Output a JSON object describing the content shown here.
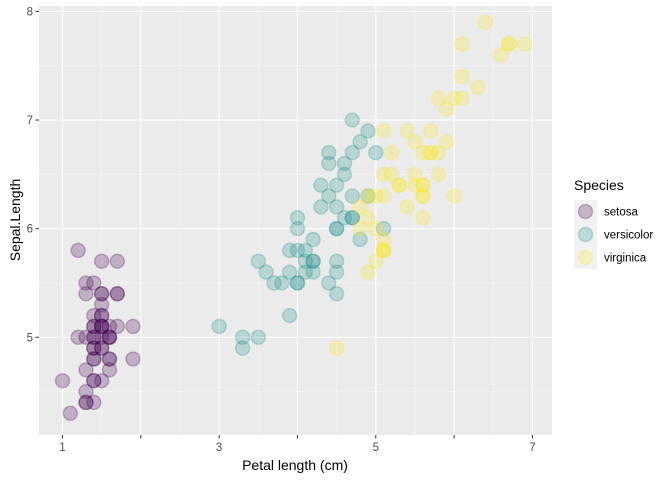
{
  "chart_data": {
    "type": "scatter",
    "xlabel": "Petal length (cm)",
    "ylabel": "Sepal.Length",
    "xlim": [
      0.7,
      7.25
    ],
    "ylim": [
      4.1,
      8.05
    ],
    "x_ticks": [
      1,
      3,
      5,
      7
    ],
    "x_ticks_unlabeled": [
      2,
      4,
      6
    ],
    "y_ticks": [
      5,
      6,
      7,
      8
    ],
    "grid": true,
    "legend": {
      "title": "Species",
      "position": "right"
    },
    "point_alpha": 0.25,
    "series": [
      {
        "name": "setosa",
        "color": "#440154",
        "points": [
          [
            1.4,
            5.1
          ],
          [
            1.4,
            4.9
          ],
          [
            1.3,
            4.7
          ],
          [
            1.5,
            4.6
          ],
          [
            1.4,
            5.0
          ],
          [
            1.7,
            5.4
          ],
          [
            1.4,
            4.6
          ],
          [
            1.5,
            5.0
          ],
          [
            1.4,
            4.4
          ],
          [
            1.5,
            4.9
          ],
          [
            1.5,
            5.4
          ],
          [
            1.6,
            4.8
          ],
          [
            1.4,
            4.8
          ],
          [
            1.1,
            4.3
          ],
          [
            1.2,
            5.8
          ],
          [
            1.5,
            5.7
          ],
          [
            1.3,
            5.4
          ],
          [
            1.4,
            5.1
          ],
          [
            1.7,
            5.7
          ],
          [
            1.5,
            5.1
          ],
          [
            1.7,
            5.4
          ],
          [
            1.5,
            5.1
          ],
          [
            1.0,
            4.6
          ],
          [
            1.7,
            5.1
          ],
          [
            1.9,
            4.8
          ],
          [
            1.6,
            5.0
          ],
          [
            1.6,
            5.0
          ],
          [
            1.5,
            5.2
          ],
          [
            1.4,
            5.2
          ],
          [
            1.6,
            4.7
          ],
          [
            1.6,
            4.8
          ],
          [
            1.5,
            5.4
          ],
          [
            1.5,
            5.2
          ],
          [
            1.4,
            5.5
          ],
          [
            1.5,
            4.9
          ],
          [
            1.2,
            5.0
          ],
          [
            1.3,
            5.5
          ],
          [
            1.4,
            4.9
          ],
          [
            1.3,
            4.4
          ],
          [
            1.5,
            5.1
          ],
          [
            1.3,
            5.0
          ],
          [
            1.3,
            4.5
          ],
          [
            1.3,
            4.4
          ],
          [
            1.6,
            5.0
          ],
          [
            1.9,
            5.1
          ],
          [
            1.4,
            4.8
          ],
          [
            1.6,
            5.1
          ],
          [
            1.4,
            4.6
          ],
          [
            1.5,
            5.3
          ],
          [
            1.4,
            5.0
          ]
        ]
      },
      {
        "name": "versicolor",
        "color": "#21908C",
        "points": [
          [
            4.7,
            7.0
          ],
          [
            4.5,
            6.4
          ],
          [
            4.9,
            6.9
          ],
          [
            4.0,
            5.5
          ],
          [
            4.6,
            6.5
          ],
          [
            4.5,
            5.7
          ],
          [
            4.7,
            6.3
          ],
          [
            3.3,
            4.9
          ],
          [
            4.6,
            6.6
          ],
          [
            3.9,
            5.2
          ],
          [
            3.5,
            5.0
          ],
          [
            4.2,
            5.9
          ],
          [
            4.0,
            6.0
          ],
          [
            4.7,
            6.1
          ],
          [
            3.6,
            5.6
          ],
          [
            4.4,
            6.7
          ],
          [
            4.5,
            5.6
          ],
          [
            4.1,
            5.8
          ],
          [
            4.5,
            6.2
          ],
          [
            3.9,
            5.6
          ],
          [
            4.8,
            5.9
          ],
          [
            4.0,
            6.1
          ],
          [
            4.9,
            6.3
          ],
          [
            4.7,
            6.1
          ],
          [
            4.3,
            6.4
          ],
          [
            4.4,
            6.6
          ],
          [
            4.8,
            6.8
          ],
          [
            5.0,
            6.7
          ],
          [
            4.5,
            6.0
          ],
          [
            3.5,
            5.7
          ],
          [
            3.8,
            5.5
          ],
          [
            3.7,
            5.5
          ],
          [
            3.9,
            5.8
          ],
          [
            5.1,
            6.0
          ],
          [
            4.5,
            5.4
          ],
          [
            4.5,
            6.0
          ],
          [
            4.7,
            6.7
          ],
          [
            4.4,
            6.3
          ],
          [
            4.1,
            5.6
          ],
          [
            4.0,
            5.5
          ],
          [
            4.4,
            5.5
          ],
          [
            4.6,
            6.1
          ],
          [
            4.0,
            5.8
          ],
          [
            3.3,
            5.0
          ],
          [
            4.2,
            5.6
          ],
          [
            4.2,
            5.7
          ],
          [
            4.2,
            5.7
          ],
          [
            4.3,
            6.2
          ],
          [
            3.0,
            5.1
          ],
          [
            4.1,
            5.7
          ]
        ]
      },
      {
        "name": "virginica",
        "color": "#FDE725",
        "points": [
          [
            6.0,
            6.3
          ],
          [
            5.1,
            5.8
          ],
          [
            5.9,
            7.1
          ],
          [
            5.6,
            6.3
          ],
          [
            5.8,
            6.5
          ],
          [
            6.6,
            7.6
          ],
          [
            4.5,
            4.9
          ],
          [
            6.3,
            7.3
          ],
          [
            5.8,
            6.7
          ],
          [
            6.1,
            7.2
          ],
          [
            5.1,
            6.5
          ],
          [
            5.3,
            6.4
          ],
          [
            5.5,
            6.8
          ],
          [
            5.0,
            5.7
          ],
          [
            5.1,
            5.8
          ],
          [
            5.3,
            6.4
          ],
          [
            5.5,
            6.5
          ],
          [
            6.7,
            7.7
          ],
          [
            6.9,
            7.7
          ],
          [
            5.0,
            6.0
          ],
          [
            5.7,
            6.9
          ],
          [
            4.9,
            5.6
          ],
          [
            6.7,
            7.7
          ],
          [
            4.9,
            6.3
          ],
          [
            5.7,
            6.7
          ],
          [
            6.0,
            7.2
          ],
          [
            4.8,
            6.2
          ],
          [
            4.9,
            6.1
          ],
          [
            5.6,
            6.4
          ],
          [
            5.8,
            7.2
          ],
          [
            6.1,
            7.4
          ],
          [
            6.4,
            7.9
          ],
          [
            5.6,
            6.4
          ],
          [
            5.1,
            6.3
          ],
          [
            5.6,
            6.1
          ],
          [
            6.1,
            7.7
          ],
          [
            5.6,
            6.3
          ],
          [
            5.5,
            6.4
          ],
          [
            4.8,
            6.0
          ],
          [
            5.4,
            6.9
          ],
          [
            5.6,
            6.7
          ],
          [
            5.1,
            6.9
          ],
          [
            5.1,
            5.8
          ],
          [
            5.9,
            6.8
          ],
          [
            5.7,
            6.7
          ],
          [
            5.2,
            6.7
          ],
          [
            5.0,
            6.3
          ],
          [
            5.2,
            6.5
          ],
          [
            5.4,
            6.2
          ],
          [
            5.1,
            5.9
          ]
        ]
      }
    ]
  }
}
